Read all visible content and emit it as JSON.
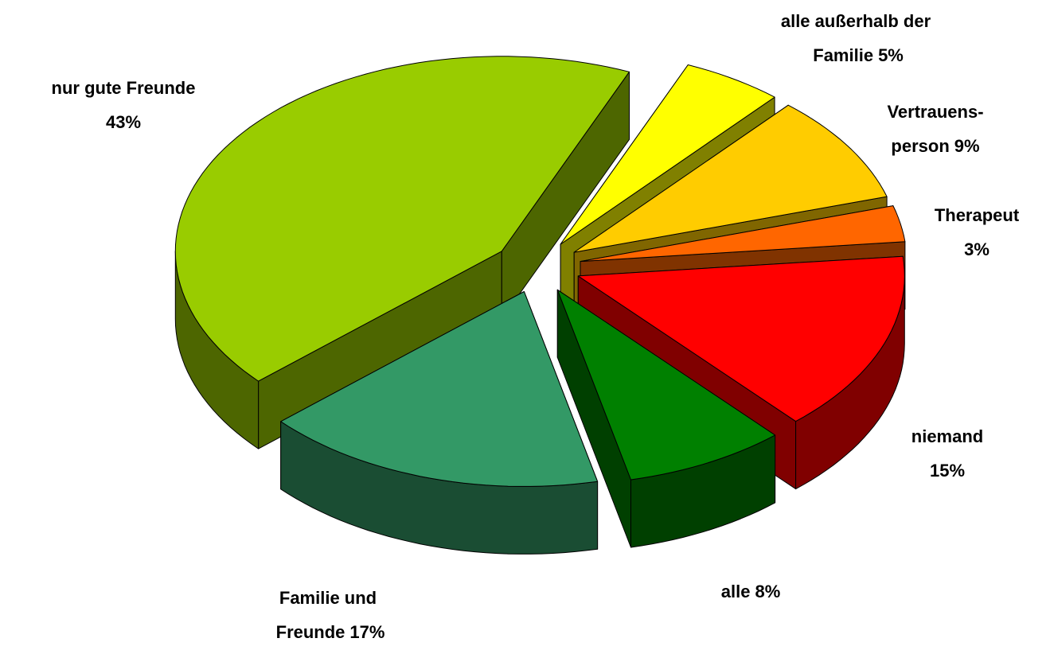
{
  "chart_data": {
    "type": "pie3d",
    "categories": [
      "alle außerhalb der Familie",
      "Vertrauens-person",
      "Therapeut",
      "niemand",
      "alle",
      "Familie und Freunde",
      "nur gute Freunde"
    ],
    "values": [
      5,
      9,
      3,
      15,
      8,
      17,
      43
    ],
    "value_labels": [
      "5%",
      "9%",
      "3%",
      "15%",
      "8%",
      "17%",
      "43%"
    ],
    "colors": [
      "#ffff00",
      "#ffcc00",
      "#ff6600",
      "#ff0000",
      "#008000",
      "#339966",
      "#99cc00"
    ]
  }
}
